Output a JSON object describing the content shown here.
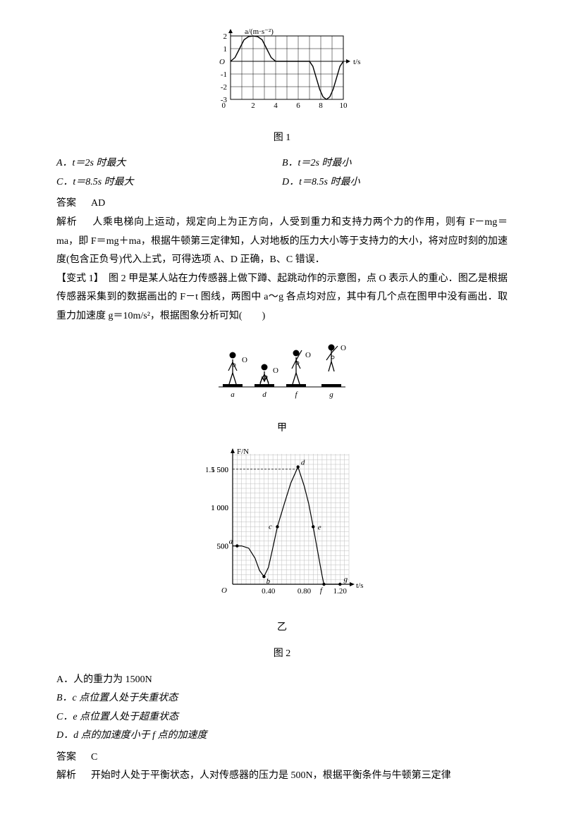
{
  "fig1": {
    "type": "line",
    "ylabel": "a/(m·s⁻²)",
    "xlabel": "t/s",
    "caption": "图 1",
    "xlim": [
      0,
      10
    ],
    "ylim": [
      -3,
      2
    ],
    "xticks": [
      0,
      2,
      4,
      6,
      8,
      10
    ],
    "yticks": [
      -3,
      -2,
      -1,
      0,
      1,
      2
    ],
    "yticks_shown": [
      -3,
      -2,
      -1,
      1,
      2
    ],
    "grid_color": "#000000",
    "bg_color": "#ffffff",
    "line_color": "#000000",
    "line_width": 1.4,
    "grid_width": 0.5,
    "points": [
      [
        0,
        0
      ],
      [
        0.4,
        0.3
      ],
      [
        0.8,
        1.0
      ],
      [
        1.2,
        1.7
      ],
      [
        1.6,
        1.95
      ],
      [
        2.0,
        2.0
      ],
      [
        2.4,
        1.95
      ],
      [
        2.8,
        1.7
      ],
      [
        3.2,
        1.0
      ],
      [
        3.6,
        0.3
      ],
      [
        4.0,
        0
      ],
      [
        5.0,
        0
      ],
      [
        6.0,
        0
      ],
      [
        7.0,
        0
      ],
      [
        7.3,
        -0.4
      ],
      [
        7.6,
        -1.3
      ],
      [
        7.9,
        -2.2
      ],
      [
        8.2,
        -2.8
      ],
      [
        8.5,
        -3.0
      ],
      [
        8.8,
        -2.8
      ],
      [
        9.1,
        -2.2
      ],
      [
        9.4,
        -1.3
      ],
      [
        9.7,
        -0.4
      ],
      [
        10.0,
        0
      ]
    ]
  },
  "q1": {
    "optA": "A．t＝2s 时最大",
    "optB": "B．t＝2s 时最小",
    "optC": "C．t＝8.5s 时最大",
    "optD": "D．t＝8.5s 时最小",
    "answer_label": "答案",
    "answer": "AD",
    "explain_label": "解析",
    "explain": "人乘电梯向上运动，规定向上为正方向，人受到重力和支持力两个力的作用，则有 F－mg＝ma，即 F＝mg＋ma，根据牛顿第三定律知，人对地板的压力大小等于支持力的大小，将对应时刻的加速度(包含正负号)代入上式，可得选项 A、D 正确，B、C 错误．"
  },
  "variant": {
    "tag": "【变式 1】",
    "stem": "图 2 甲是某人站在力传感器上做下蹲、起跳动作的示意图，点 O 表示人的重心．图乙是根据传感器采集到的数据画出的 F－t 图线，两图中 a～g 各点均对应，其中有几个点在图甲中没有画出．取重力加速度 g＝10m/s²，根据图象分析可知(　　)"
  },
  "fig2a": {
    "caption": "甲",
    "platform_color": "#000000",
    "stick_color": "#000000",
    "labels": [
      "a",
      "d",
      "f",
      "g"
    ],
    "o_label": "O"
  },
  "fig2b": {
    "type": "line",
    "caption_sub": "乙",
    "caption": "图 2",
    "ylabel": "F/N",
    "xlabel": "t/s",
    "xlim": [
      0,
      1.3
    ],
    "ylim": [
      0,
      1700
    ],
    "xticks": [
      0.4,
      0.8,
      1.2
    ],
    "yticks": [
      500,
      1000,
      1500
    ],
    "grid_minor_x": 0.05,
    "grid_minor_y": 62.5,
    "grid_color": "#bdbdbd",
    "line_color": "#000000",
    "line_width": 1.2,
    "points_labeled": {
      "a": [
        0.05,
        500
      ],
      "b": [
        0.35,
        100
      ],
      "c": [
        0.5,
        750
      ],
      "d": [
        0.73,
        1530
      ],
      "e": [
        0.9,
        750
      ],
      "f": [
        1.02,
        0
      ],
      "g": [
        1.2,
        0
      ]
    },
    "curve": [
      [
        0.0,
        500
      ],
      [
        0.1,
        500
      ],
      [
        0.18,
        470
      ],
      [
        0.25,
        340
      ],
      [
        0.3,
        180
      ],
      [
        0.35,
        100
      ],
      [
        0.4,
        220
      ],
      [
        0.45,
        480
      ],
      [
        0.5,
        750
      ],
      [
        0.58,
        1060
      ],
      [
        0.65,
        1320
      ],
      [
        0.73,
        1530
      ],
      [
        0.8,
        1280
      ],
      [
        0.85,
        1050
      ],
      [
        0.9,
        750
      ],
      [
        0.95,
        430
      ],
      [
        1.0,
        110
      ],
      [
        1.02,
        0
      ],
      [
        1.2,
        0
      ]
    ]
  },
  "q2": {
    "optA": "A．人的重力为 1500N",
    "optB": "B．c 点位置人处于失重状态",
    "optC": "C．e 点位置人处于超重状态",
    "optD": "D．d 点的加速度小于 f 点的加速度",
    "answer_label": "答案",
    "answer": "C",
    "explain_label": "解析",
    "explain": "开始时人处于平衡状态，人对传感器的压力是 500N，根据平衡条件与牛顿第三定律"
  }
}
